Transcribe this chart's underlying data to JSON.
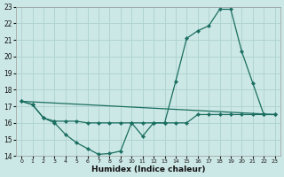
{
  "xlabel": "Humidex (Indice chaleur)",
  "bg_color": "#cce8e6",
  "grid_color": "#b0d4d2",
  "line_color": "#1a6e60",
  "xlim_min": -0.5,
  "xlim_max": 23.5,
  "ylim_min": 14,
  "ylim_max": 23,
  "xticks": [
    0,
    1,
    2,
    3,
    4,
    5,
    6,
    7,
    8,
    9,
    10,
    11,
    12,
    13,
    14,
    15,
    16,
    17,
    18,
    19,
    20,
    21,
    22,
    23
  ],
  "yticks": [
    14,
    15,
    16,
    17,
    18,
    19,
    20,
    21,
    22,
    23
  ],
  "line1_x": [
    0,
    1,
    2,
    3,
    4,
    5,
    6,
    7,
    8,
    9,
    10,
    11,
    12,
    13,
    14,
    15,
    16,
    17,
    18,
    19,
    20,
    21,
    22,
    23
  ],
  "line1_y": [
    17.3,
    17.1,
    16.3,
    16.0,
    15.3,
    14.8,
    14.45,
    14.1,
    14.15,
    14.3,
    16.0,
    15.2,
    16.0,
    16.0,
    18.5,
    21.1,
    21.55,
    21.85,
    22.85,
    22.85,
    20.3,
    18.4,
    16.5,
    16.5
  ],
  "line2_x": [
    0,
    23
  ],
  "line2_y": [
    17.3,
    16.5
  ],
  "line3_x": [
    0,
    1,
    2,
    3,
    4,
    5,
    6,
    7,
    8,
    9,
    10,
    11,
    12,
    13,
    14,
    15,
    16,
    17,
    18,
    19,
    20,
    21,
    22,
    23
  ],
  "line3_y": [
    17.3,
    17.1,
    16.3,
    16.1,
    16.1,
    16.1,
    16.0,
    16.0,
    16.0,
    16.0,
    16.0,
    16.0,
    16.0,
    16.0,
    16.0,
    16.0,
    16.5,
    16.5,
    16.5,
    16.5,
    16.5,
    16.5,
    16.5,
    16.5
  ]
}
